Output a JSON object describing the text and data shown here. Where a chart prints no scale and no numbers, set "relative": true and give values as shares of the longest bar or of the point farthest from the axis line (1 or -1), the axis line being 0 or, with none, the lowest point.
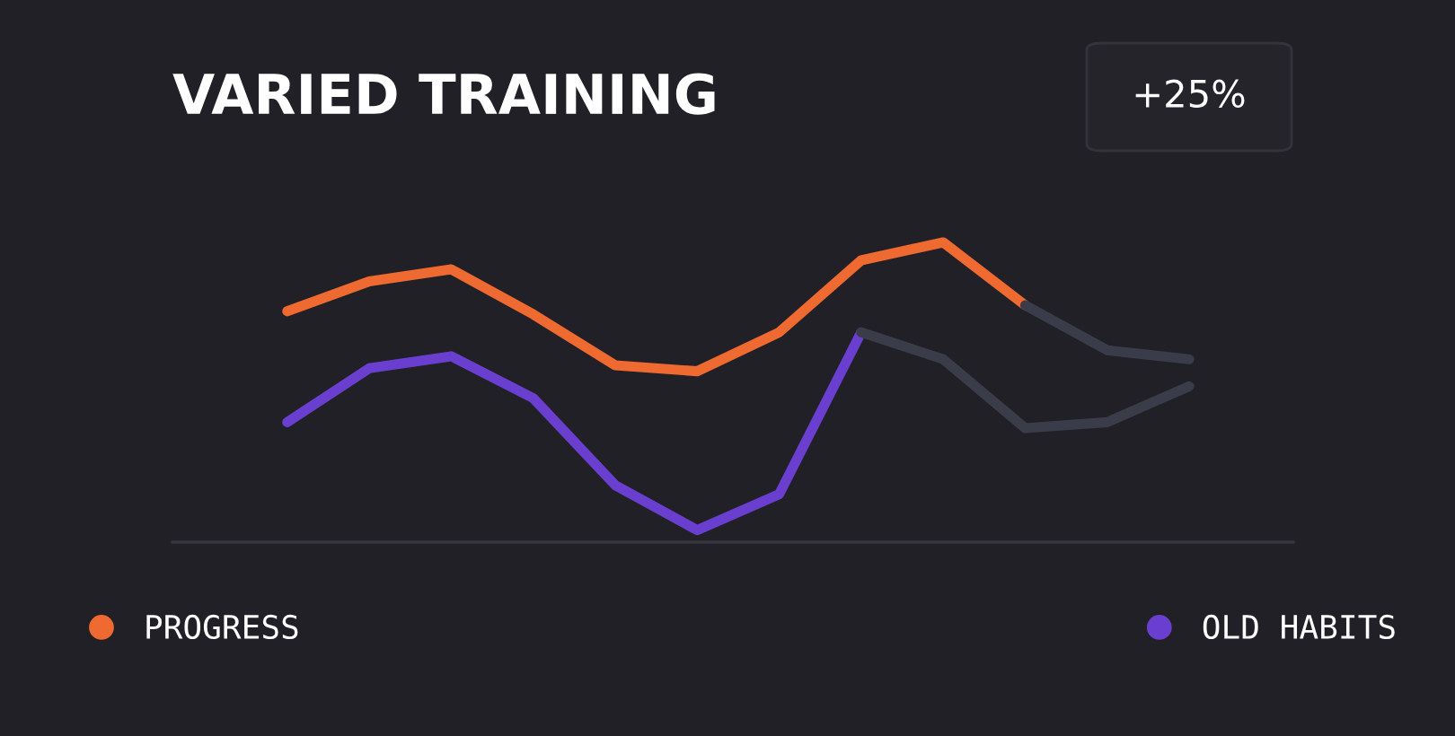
{
  "chart_data": {
    "type": "line",
    "title": "VARIED TRAINING",
    "relative": true,
    "annotations": [
      "+25%"
    ],
    "categories": [
      null,
      null,
      null,
      null,
      null,
      null,
      null,
      null,
      null,
      null,
      null,
      null
    ],
    "series": [
      {
        "name": "PROGRESS",
        "color": "#ee6a30",
        "values": [
          0.77,
          0.87,
          0.91,
          0.76,
          0.59,
          0.57,
          0.7,
          0.94,
          1.0,
          0.79,
          null,
          null
        ]
      },
      {
        "color": "#3a3c49",
        "values": [
          null,
          null,
          null,
          null,
          null,
          null,
          null,
          null,
          null,
          0.79,
          0.64,
          0.61
        ]
      },
      {
        "name": "OLD HABITS",
        "color": "#6a3fd0",
        "values": [
          0.4,
          0.58,
          0.62,
          0.48,
          0.19,
          0.04,
          0.16,
          0.7,
          null,
          null,
          null,
          null
        ]
      },
      {
        "color": "#3a3c49",
        "values": [
          null,
          null,
          null,
          null,
          null,
          null,
          null,
          0.7,
          0.61,
          0.38,
          0.4,
          0.52
        ]
      }
    ],
    "legend": "bottom",
    "grid": false,
    "marker": "none",
    "line_style": "solid"
  }
}
